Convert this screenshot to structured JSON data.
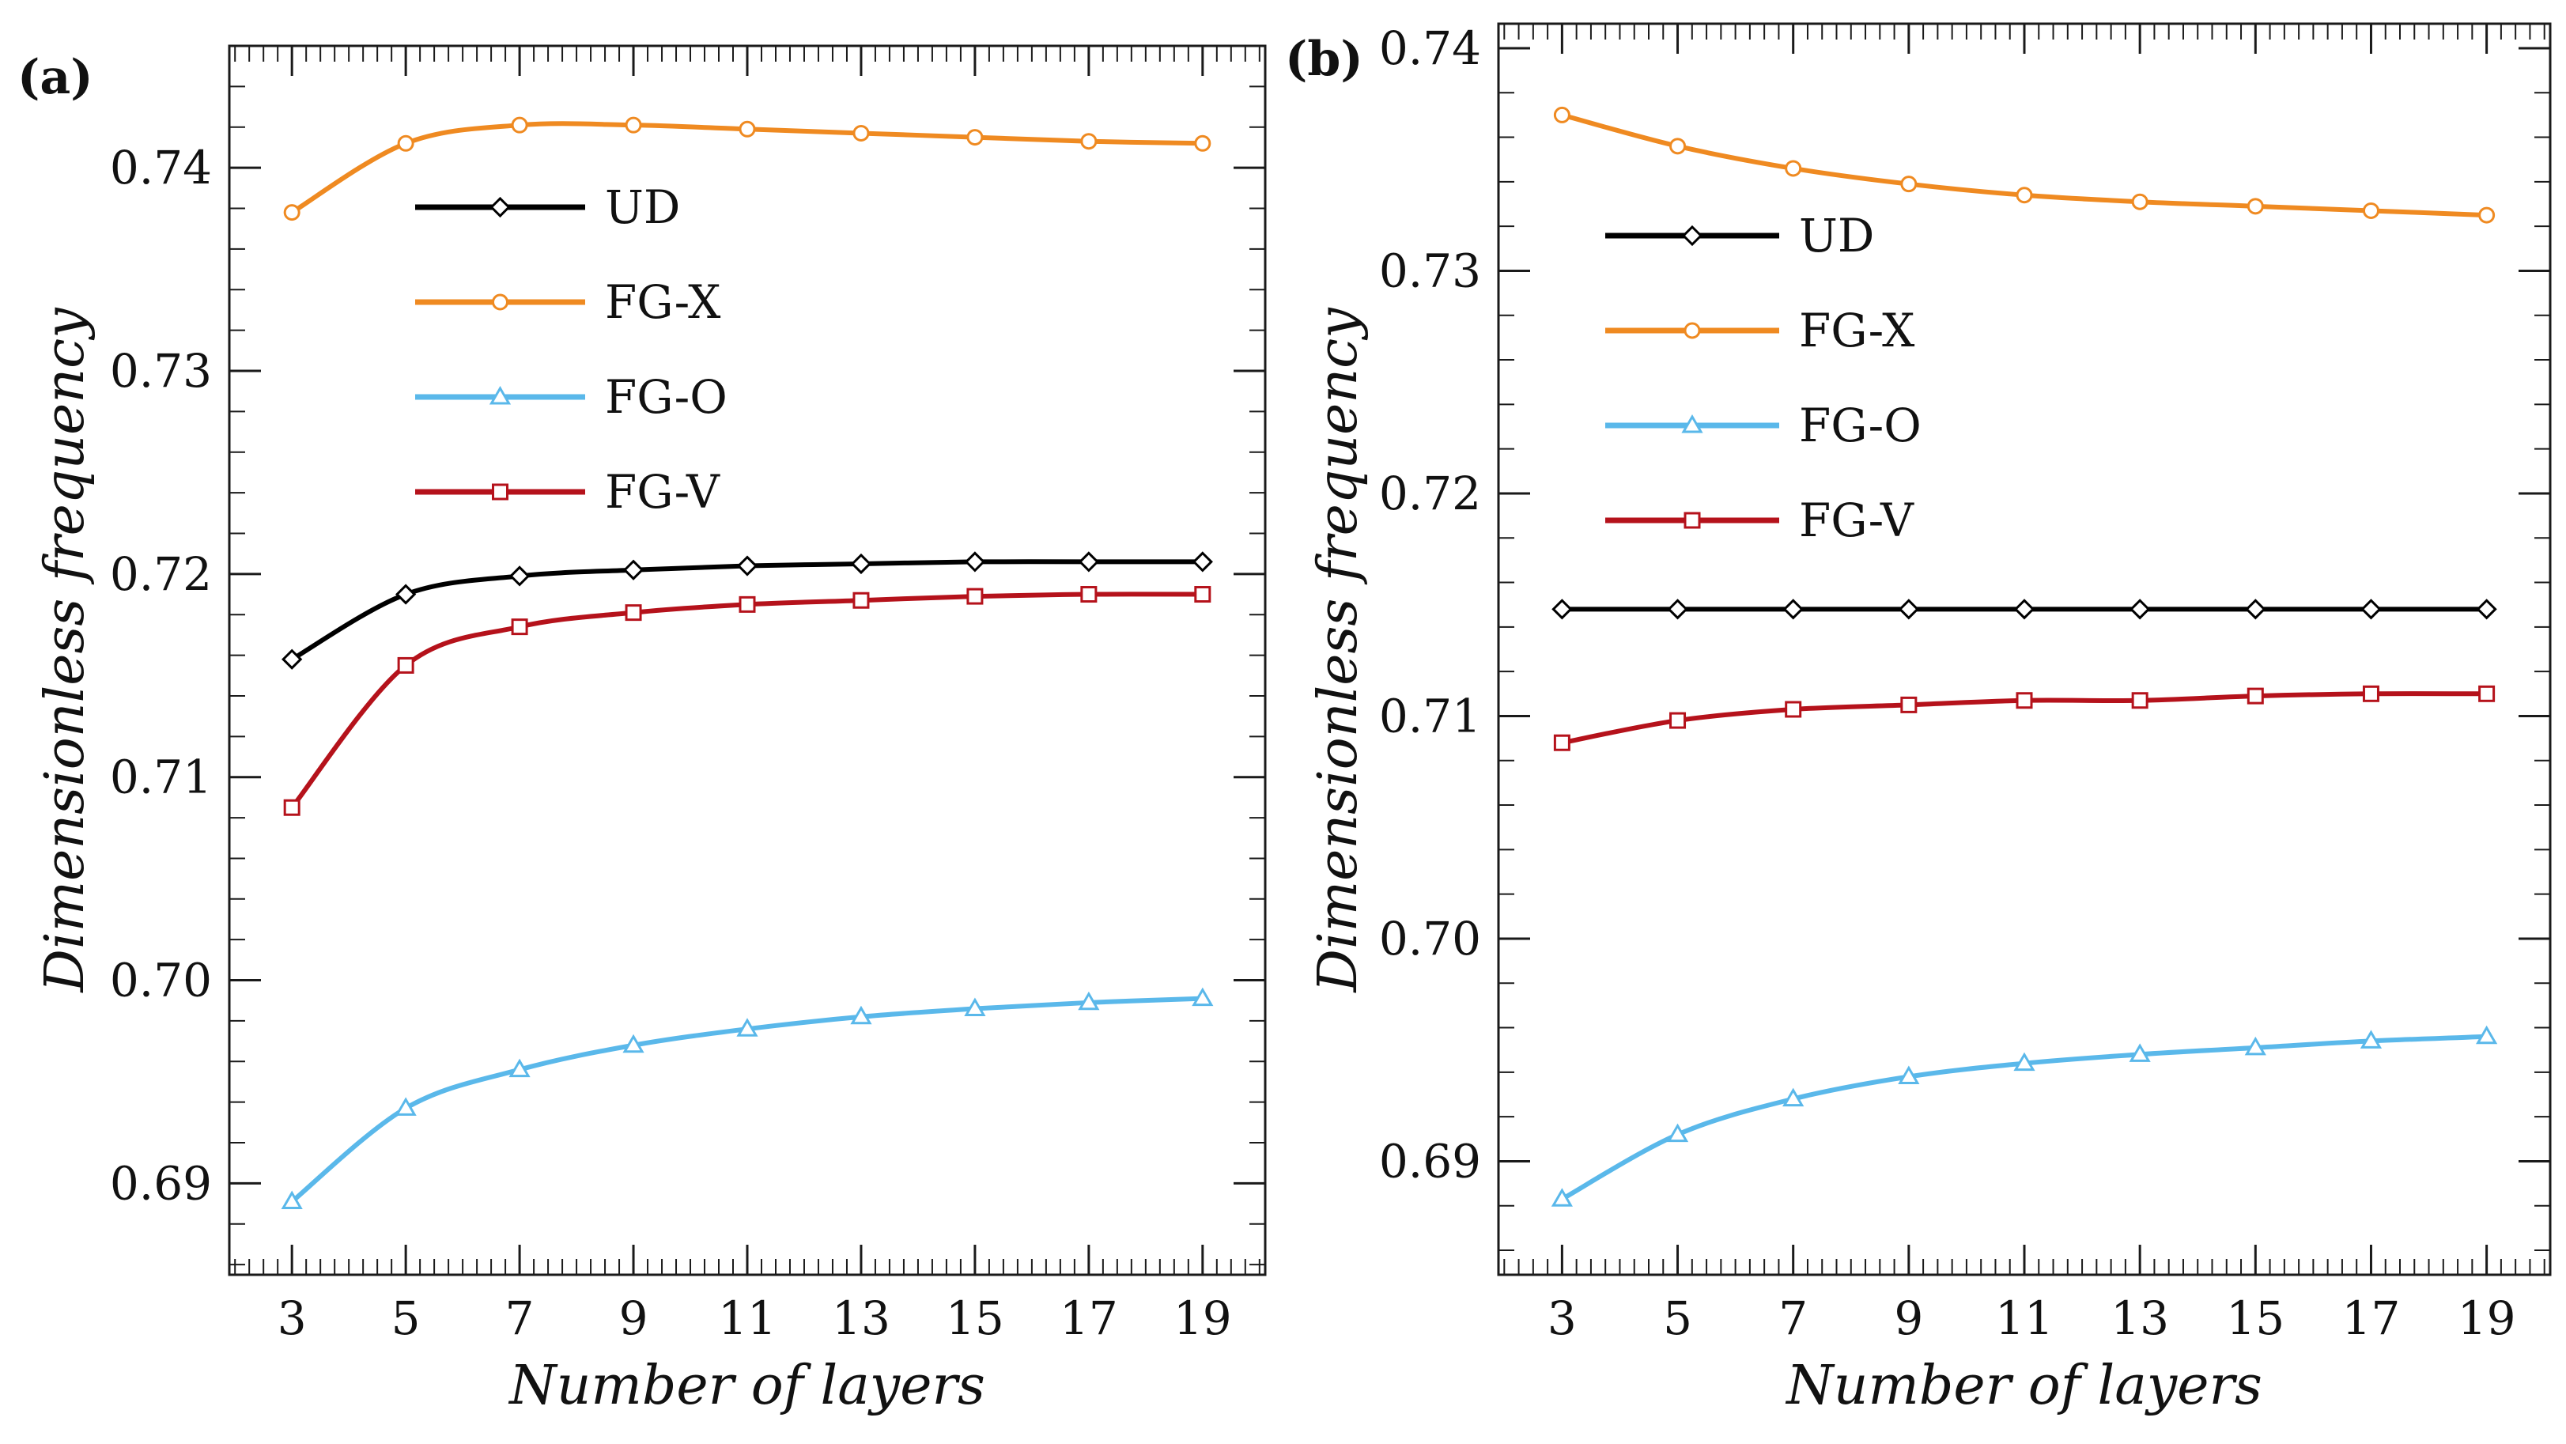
{
  "colors": {
    "UD": "#000000",
    "FG-X": "#ef8a21",
    "FG-O": "#5ab8ea",
    "FG-V": "#b5121b",
    "axis": "#1a1a1a"
  },
  "chart_data": [
    {
      "type": "line",
      "panel_label": "(a)",
      "xlabel": "Number of layers",
      "ylabel": "Dimensionless frequency",
      "x": [
        3,
        5,
        7,
        9,
        11,
        13,
        15,
        17,
        19
      ],
      "xlim": [
        1.9,
        20.1
      ],
      "ylim": [
        0.6855,
        0.746
      ],
      "xticks": [
        3,
        5,
        7,
        9,
        11,
        13,
        15,
        17,
        19
      ],
      "xtick_labels": [
        "3",
        "5",
        "7",
        "9",
        "11",
        "13",
        "15",
        "17",
        "19"
      ],
      "yticks": [
        0.69,
        0.7,
        0.71,
        0.72,
        0.73,
        0.74
      ],
      "ytick_labels": [
        "0.69",
        "0.70",
        "0.71",
        "0.72",
        "0.73",
        "0.74"
      ],
      "legend_position": "upper-center",
      "series": [
        {
          "name": "UD",
          "marker": "diamond",
          "values": [
            0.7158,
            0.719,
            0.7199,
            0.7202,
            0.7204,
            0.7205,
            0.7206,
            0.7206,
            0.7206
          ]
        },
        {
          "name": "FG-X",
          "marker": "circle",
          "values": [
            0.7378,
            0.7412,
            0.7421,
            0.7421,
            0.7419,
            0.7417,
            0.7415,
            0.7413,
            0.7412
          ]
        },
        {
          "name": "FG-O",
          "marker": "triangle",
          "values": [
            0.6891,
            0.6937,
            0.6956,
            0.6968,
            0.6976,
            0.6982,
            0.6986,
            0.6989,
            0.6991
          ]
        },
        {
          "name": "FG-V",
          "marker": "square",
          "values": [
            0.7085,
            0.7155,
            0.7174,
            0.7181,
            0.7185,
            0.7187,
            0.7189,
            0.719,
            0.719
          ]
        }
      ]
    },
    {
      "type": "line",
      "panel_label": "(b)",
      "xlabel": "Number of layers",
      "ylabel": "Dimensionless frequency",
      "x": [
        3,
        5,
        7,
        9,
        11,
        13,
        15,
        17,
        19
      ],
      "xlim": [
        1.9,
        20.1
      ],
      "ylim": [
        0.6849,
        0.7411
      ],
      "xticks": [
        3,
        5,
        7,
        9,
        11,
        13,
        15,
        17,
        19
      ],
      "xtick_labels": [
        "3",
        "5",
        "7",
        "9",
        "11",
        "13",
        "15",
        "17",
        "19"
      ],
      "yticks": [
        0.69,
        0.7,
        0.71,
        0.72,
        0.73,
        0.74
      ],
      "ytick_labels": [
        "0.69",
        "0.70",
        "0.71",
        "0.72",
        "0.73",
        "0.74"
      ],
      "legend_position": "upper-left",
      "series": [
        {
          "name": "UD",
          "marker": "diamond",
          "values": [
            0.7148,
            0.7148,
            0.7148,
            0.7148,
            0.7148,
            0.7148,
            0.7148,
            0.7148,
            0.7148
          ]
        },
        {
          "name": "FG-X",
          "marker": "circle",
          "values": [
            0.737,
            0.7356,
            0.7346,
            0.7339,
            0.7334,
            0.7331,
            0.7329,
            0.7327,
            0.7325
          ]
        },
        {
          "name": "FG-O",
          "marker": "triangle",
          "values": [
            0.6883,
            0.6912,
            0.6928,
            0.6938,
            0.6944,
            0.6948,
            0.6951,
            0.6954,
            0.6956
          ]
        },
        {
          "name": "FG-V",
          "marker": "square",
          "values": [
            0.7088,
            0.7098,
            0.7103,
            0.7105,
            0.7107,
            0.7107,
            0.7109,
            0.711,
            0.711
          ]
        }
      ]
    }
  ]
}
